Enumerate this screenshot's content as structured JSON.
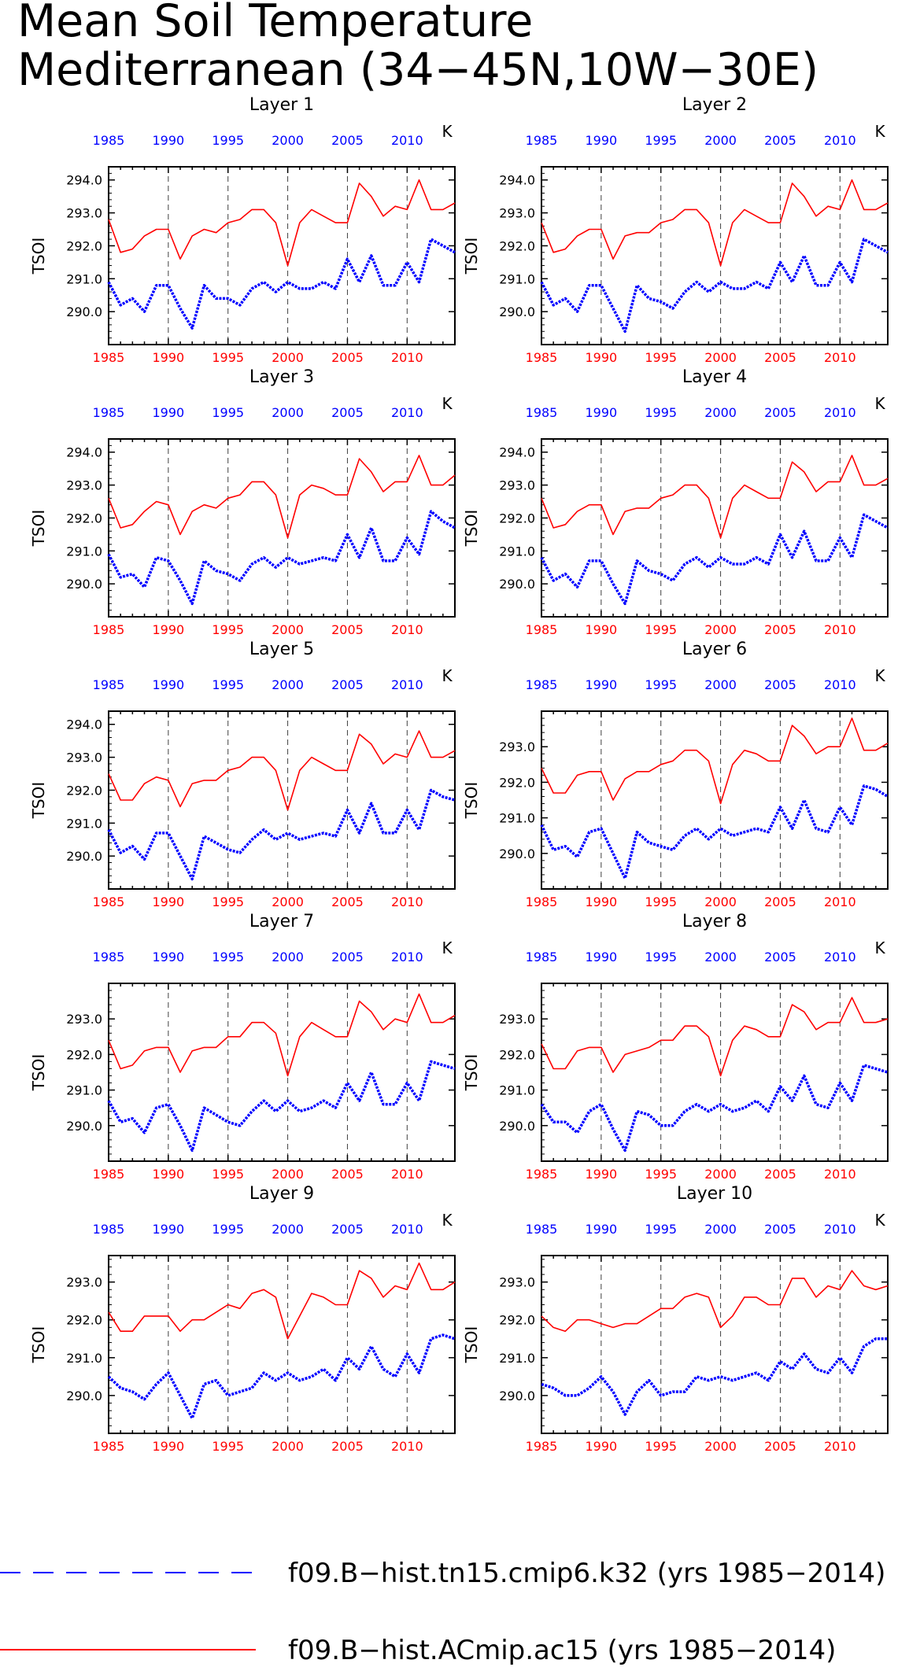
{
  "title": [
    "Mean Soil Temperature",
    "Mediterranean (34−45N,10W−30E)"
  ],
  "colors": {
    "case1": "#0000ff",
    "case2": "#ff0000",
    "top_ticks": "#0000ff",
    "bottom_ticks": "#ff0000",
    "vgrid": "#000000"
  },
  "legend": [
    {
      "label": "f09.B−hist.tn15.cmip6.k32 (yrs 1985−2014)",
      "color": "#0000ff",
      "style": "dashed"
    },
    {
      "label": "f09.B−hist.ACmip.ac15 (yrs 1985−2014)",
      "color": "#ff0000",
      "style": "solid"
    }
  ],
  "chart_data": [
    {
      "type": "line",
      "title": "Layer 1",
      "ylabel": "TSOI",
      "units": "K",
      "xlim": [
        1985,
        2014
      ],
      "ylim": [
        289.0,
        294.4
      ],
      "yticks": [
        290.0,
        291.0,
        292.0,
        293.0,
        294.0
      ],
      "xticks": [
        1985,
        1990,
        1995,
        2000,
        2005,
        2010
      ],
      "x_start": 1985,
      "series": [
        {
          "values": [
            290.9,
            290.2,
            290.4,
            290.0,
            290.8,
            290.8,
            290.1,
            289.5,
            290.8,
            290.4,
            290.4,
            290.2,
            290.7,
            290.9,
            290.6,
            290.9,
            290.7,
            290.7,
            290.9,
            290.7,
            291.6,
            290.9,
            291.7,
            290.8,
            290.8,
            291.5,
            290.9,
            292.2,
            292.0,
            291.8
          ]
        },
        {
          "values": [
            292.8,
            291.8,
            291.9,
            292.3,
            292.5,
            292.5,
            291.6,
            292.3,
            292.5,
            292.4,
            292.7,
            292.8,
            293.1,
            293.1,
            292.7,
            291.4,
            292.7,
            293.1,
            292.9,
            292.7,
            292.7,
            293.9,
            293.5,
            292.9,
            293.2,
            293.1,
            294.0,
            293.1,
            293.1,
            293.3
          ]
        }
      ]
    },
    {
      "type": "line",
      "title": "Layer 2",
      "ylabel": "TSOI",
      "units": "K",
      "xlim": [
        1985,
        2014
      ],
      "ylim": [
        289.0,
        294.4
      ],
      "yticks": [
        290.0,
        291.0,
        292.0,
        293.0,
        294.0
      ],
      "xticks": [
        1985,
        1990,
        1995,
        2000,
        2005,
        2010
      ],
      "x_start": 1985,
      "series": [
        {
          "values": [
            290.9,
            290.2,
            290.4,
            290.0,
            290.8,
            290.8,
            290.1,
            289.4,
            290.8,
            290.4,
            290.3,
            290.1,
            290.6,
            290.9,
            290.6,
            290.9,
            290.7,
            290.7,
            290.9,
            290.7,
            291.5,
            290.9,
            291.7,
            290.8,
            290.8,
            291.5,
            290.9,
            292.2,
            292.0,
            291.8
          ]
        },
        {
          "values": [
            292.7,
            291.8,
            291.9,
            292.3,
            292.5,
            292.5,
            291.6,
            292.3,
            292.4,
            292.4,
            292.7,
            292.8,
            293.1,
            293.1,
            292.7,
            291.4,
            292.7,
            293.1,
            292.9,
            292.7,
            292.7,
            293.9,
            293.5,
            292.9,
            293.2,
            293.1,
            294.0,
            293.1,
            293.1,
            293.3
          ]
        }
      ]
    },
    {
      "type": "line",
      "title": "Layer 3",
      "ylabel": "TSOI",
      "units": "K",
      "xlim": [
        1985,
        2014
      ],
      "ylim": [
        289.0,
        294.4
      ],
      "yticks": [
        290.0,
        291.0,
        292.0,
        293.0,
        294.0
      ],
      "xticks": [
        1985,
        1990,
        1995,
        2000,
        2005,
        2010
      ],
      "x_start": 1985,
      "series": [
        {
          "values": [
            290.9,
            290.2,
            290.3,
            289.9,
            290.8,
            290.7,
            290.1,
            289.4,
            290.7,
            290.4,
            290.3,
            290.1,
            290.6,
            290.8,
            290.5,
            290.8,
            290.6,
            290.7,
            290.8,
            290.7,
            291.5,
            290.8,
            291.7,
            290.7,
            290.7,
            291.4,
            290.9,
            292.2,
            291.9,
            291.7
          ]
        },
        {
          "values": [
            292.6,
            291.7,
            291.8,
            292.2,
            292.5,
            292.4,
            291.5,
            292.2,
            292.4,
            292.3,
            292.6,
            292.7,
            293.1,
            293.1,
            292.7,
            291.4,
            292.7,
            293.0,
            292.9,
            292.7,
            292.7,
            293.8,
            293.4,
            292.8,
            293.1,
            293.1,
            293.9,
            293.0,
            293.0,
            293.3
          ]
        }
      ]
    },
    {
      "type": "line",
      "title": "Layer 4",
      "ylabel": "TSOI",
      "units": "K",
      "xlim": [
        1985,
        2014
      ],
      "ylim": [
        289.0,
        294.4
      ],
      "yticks": [
        290.0,
        291.0,
        292.0,
        293.0,
        294.0
      ],
      "xticks": [
        1985,
        1990,
        1995,
        2000,
        2005,
        2010
      ],
      "x_start": 1985,
      "series": [
        {
          "values": [
            290.8,
            290.1,
            290.3,
            289.9,
            290.7,
            290.7,
            290.0,
            289.4,
            290.7,
            290.4,
            290.3,
            290.1,
            290.6,
            290.8,
            290.5,
            290.8,
            290.6,
            290.6,
            290.8,
            290.6,
            291.5,
            290.8,
            291.6,
            290.7,
            290.7,
            291.4,
            290.8,
            292.1,
            291.9,
            291.7
          ]
        },
        {
          "values": [
            292.6,
            291.7,
            291.8,
            292.2,
            292.4,
            292.4,
            291.5,
            292.2,
            292.3,
            292.3,
            292.6,
            292.7,
            293.0,
            293.0,
            292.6,
            291.4,
            292.6,
            293.0,
            292.8,
            292.6,
            292.6,
            293.7,
            293.4,
            292.8,
            293.1,
            293.1,
            293.9,
            293.0,
            293.0,
            293.2
          ]
        }
      ]
    },
    {
      "type": "line",
      "title": "Layer 5",
      "ylabel": "TSOI",
      "units": "K",
      "xlim": [
        1985,
        2014
      ],
      "ylim": [
        289.0,
        294.4
      ],
      "yticks": [
        290.0,
        291.0,
        292.0,
        293.0,
        294.0
      ],
      "xticks": [
        1985,
        1990,
        1995,
        2000,
        2005,
        2010
      ],
      "x_start": 1985,
      "series": [
        {
          "values": [
            290.8,
            290.1,
            290.3,
            289.9,
            290.7,
            290.7,
            290.0,
            289.3,
            290.6,
            290.4,
            290.2,
            290.1,
            290.5,
            290.8,
            290.5,
            290.7,
            290.5,
            290.6,
            290.7,
            290.6,
            291.4,
            290.7,
            291.6,
            290.7,
            290.7,
            291.4,
            290.8,
            292.0,
            291.8,
            291.7
          ]
        },
        {
          "values": [
            292.5,
            291.7,
            291.7,
            292.2,
            292.4,
            292.3,
            291.5,
            292.2,
            292.3,
            292.3,
            292.6,
            292.7,
            293.0,
            293.0,
            292.6,
            291.4,
            292.6,
            293.0,
            292.8,
            292.6,
            292.6,
            293.7,
            293.4,
            292.8,
            293.1,
            293.0,
            293.8,
            293.0,
            293.0,
            293.2
          ]
        }
      ]
    },
    {
      "type": "line",
      "title": "Layer 6",
      "ylabel": "TSOI",
      "units": "K",
      "xlim": [
        1985,
        2014
      ],
      "ylim": [
        289.0,
        294.0
      ],
      "yticks": [
        290.0,
        291.0,
        292.0,
        293.0
      ],
      "xticks": [
        1985,
        1990,
        1995,
        2000,
        2005,
        2010
      ],
      "x_start": 1985,
      "series": [
        {
          "values": [
            290.8,
            290.1,
            290.2,
            289.9,
            290.6,
            290.7,
            290.0,
            289.3,
            290.6,
            290.3,
            290.2,
            290.1,
            290.5,
            290.7,
            290.4,
            290.7,
            290.5,
            290.6,
            290.7,
            290.6,
            291.3,
            290.7,
            291.5,
            290.7,
            290.6,
            291.3,
            290.8,
            291.9,
            291.8,
            291.6
          ]
        },
        {
          "values": [
            292.4,
            291.7,
            291.7,
            292.2,
            292.3,
            292.3,
            291.5,
            292.1,
            292.3,
            292.3,
            292.5,
            292.6,
            292.9,
            292.9,
            292.6,
            291.4,
            292.5,
            292.9,
            292.8,
            292.6,
            292.6,
            293.6,
            293.3,
            292.8,
            293.0,
            293.0,
            293.8,
            292.9,
            292.9,
            293.1
          ]
        }
      ]
    },
    {
      "type": "line",
      "title": "Layer 7",
      "ylabel": "TSOI",
      "units": "K",
      "xlim": [
        1985,
        2014
      ],
      "ylim": [
        289.0,
        294.0
      ],
      "yticks": [
        290.0,
        291.0,
        292.0,
        293.0
      ],
      "xticks": [
        1985,
        1990,
        1995,
        2000,
        2005,
        2010
      ],
      "x_start": 1985,
      "series": [
        {
          "values": [
            290.7,
            290.1,
            290.2,
            289.8,
            290.5,
            290.6,
            290.0,
            289.3,
            290.5,
            290.3,
            290.1,
            290.0,
            290.4,
            290.7,
            290.4,
            290.7,
            290.4,
            290.5,
            290.7,
            290.5,
            291.2,
            290.7,
            291.5,
            290.6,
            290.6,
            291.2,
            290.7,
            291.8,
            291.7,
            291.6
          ]
        },
        {
          "values": [
            292.4,
            291.6,
            291.7,
            292.1,
            292.2,
            292.2,
            291.5,
            292.1,
            292.2,
            292.2,
            292.5,
            292.5,
            292.9,
            292.9,
            292.6,
            291.4,
            292.5,
            292.9,
            292.7,
            292.5,
            292.5,
            293.5,
            293.2,
            292.7,
            293.0,
            292.9,
            293.7,
            292.9,
            292.9,
            293.1
          ]
        }
      ]
    },
    {
      "type": "line",
      "title": "Layer 8",
      "ylabel": "TSOI",
      "units": "K",
      "xlim": [
        1985,
        2014
      ],
      "ylim": [
        289.0,
        294.0
      ],
      "yticks": [
        290.0,
        291.0,
        292.0,
        293.0
      ],
      "xticks": [
        1985,
        1990,
        1995,
        2000,
        2005,
        2010
      ],
      "x_start": 1985,
      "series": [
        {
          "values": [
            290.6,
            290.1,
            290.1,
            289.8,
            290.4,
            290.6,
            289.9,
            289.3,
            290.4,
            290.3,
            290.0,
            290.0,
            290.4,
            290.6,
            290.4,
            290.6,
            290.4,
            290.5,
            290.7,
            290.4,
            291.1,
            290.7,
            291.4,
            290.6,
            290.5,
            291.2,
            290.7,
            291.7,
            291.6,
            291.5
          ]
        },
        {
          "values": [
            292.3,
            291.6,
            291.6,
            292.1,
            292.2,
            292.2,
            291.5,
            292.0,
            292.1,
            292.2,
            292.4,
            292.4,
            292.8,
            292.8,
            292.5,
            291.4,
            292.4,
            292.8,
            292.7,
            292.5,
            292.5,
            293.4,
            293.2,
            292.7,
            292.9,
            292.9,
            293.6,
            292.9,
            292.9,
            293.0
          ]
        }
      ]
    },
    {
      "type": "line",
      "title": "Layer 9",
      "ylabel": "TSOI",
      "units": "K",
      "xlim": [
        1985,
        2014
      ],
      "ylim": [
        289.0,
        293.7
      ],
      "yticks": [
        290.0,
        291.0,
        292.0,
        293.0
      ],
      "xticks": [
        1985,
        1990,
        1995,
        2000,
        2005,
        2010
      ],
      "x_start": 1985,
      "series": [
        {
          "values": [
            290.5,
            290.2,
            290.1,
            289.9,
            290.3,
            290.6,
            290.0,
            289.4,
            290.3,
            290.4,
            290.0,
            290.1,
            290.2,
            290.6,
            290.4,
            290.6,
            290.4,
            290.5,
            290.7,
            290.4,
            291.0,
            290.7,
            291.3,
            290.7,
            290.5,
            291.1,
            290.6,
            291.5,
            291.6,
            291.5
          ]
        },
        {
          "values": [
            292.2,
            291.7,
            291.7,
            292.1,
            292.1,
            292.1,
            291.7,
            292.0,
            292.0,
            292.2,
            292.4,
            292.3,
            292.7,
            292.8,
            292.6,
            291.5,
            292.1,
            292.7,
            292.6,
            292.4,
            292.4,
            293.3,
            293.1,
            292.6,
            292.9,
            292.8,
            293.5,
            292.8,
            292.8,
            293.0
          ]
        }
      ]
    },
    {
      "type": "line",
      "title": "Layer 10",
      "ylabel": "TSOI",
      "units": "K",
      "xlim": [
        1985,
        2014
      ],
      "ylim": [
        289.0,
        293.7
      ],
      "yticks": [
        290.0,
        291.0,
        292.0,
        293.0
      ],
      "xticks": [
        1985,
        1990,
        1995,
        2000,
        2005,
        2010
      ],
      "x_start": 1985,
      "series": [
        {
          "values": [
            290.3,
            290.2,
            290.0,
            290.0,
            290.2,
            290.5,
            290.1,
            289.5,
            290.1,
            290.4,
            290.0,
            290.1,
            290.1,
            290.5,
            290.4,
            290.5,
            290.4,
            290.5,
            290.6,
            290.4,
            290.9,
            290.7,
            291.1,
            290.7,
            290.6,
            291.0,
            290.6,
            291.3,
            291.5,
            291.5
          ]
        },
        {
          "values": [
            292.1,
            291.8,
            291.7,
            292.0,
            292.0,
            291.9,
            291.8,
            291.9,
            291.9,
            292.1,
            292.3,
            292.3,
            292.6,
            292.7,
            292.6,
            291.8,
            292.1,
            292.6,
            292.6,
            292.4,
            292.4,
            293.1,
            293.1,
            292.6,
            292.9,
            292.8,
            293.3,
            292.9,
            292.8,
            292.9
          ]
        }
      ]
    }
  ]
}
